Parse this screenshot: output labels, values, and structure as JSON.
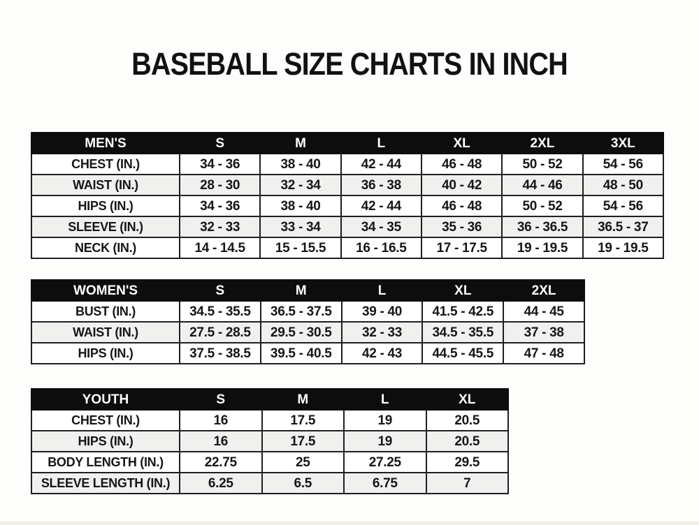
{
  "title": "BASEBALL SIZE CHARTS IN INCH",
  "colors": {
    "header_bg": "#0d0d0d",
    "header_text": "#ffffff",
    "row_alt_bg": "#f0f0ee",
    "row_bg": "#ffffff",
    "border": "#1f1f1f",
    "text": "#161616"
  },
  "chart_data": [
    {
      "type": "table",
      "name": "mens",
      "title": "MEN'S",
      "columns": [
        "S",
        "M",
        "L",
        "XL",
        "2XL",
        "3XL"
      ],
      "row_labels": [
        "CHEST (IN.)",
        "WAIST (IN.)",
        "HIPS (IN.)",
        "SLEEVE (IN.)",
        "NECK (IN.)"
      ],
      "rows": [
        [
          "34 - 36",
          "38 - 40",
          "42 - 44",
          "46 - 48",
          "50 - 52",
          "54 - 56"
        ],
        [
          "28 - 30",
          "32 - 34",
          "36 - 38",
          "40 - 42",
          "44 - 46",
          "48 - 50"
        ],
        [
          "34 - 36",
          "38 - 40",
          "42 - 44",
          "46 - 48",
          "50 - 52",
          "54 - 56"
        ],
        [
          "32 - 33",
          "33 - 34",
          "34 - 35",
          "35 - 36",
          "36 - 36.5",
          "36.5 - 37"
        ],
        [
          "14 - 14.5",
          "15 - 15.5",
          "16 - 16.5",
          "17 - 17.5",
          "19 - 19.5",
          "19 - 19.5"
        ]
      ]
    },
    {
      "type": "table",
      "name": "womens",
      "title": "WOMEN'S",
      "columns": [
        "S",
        "M",
        "L",
        "XL",
        "2XL"
      ],
      "row_labels": [
        "BUST (IN.)",
        "WAIST (IN.)",
        "HIPS (IN.)"
      ],
      "rows": [
        [
          "34.5 - 35.5",
          "36.5 - 37.5",
          "39 - 40",
          "41.5 - 42.5",
          "44 - 45"
        ],
        [
          "27.5 - 28.5",
          "29.5 - 30.5",
          "32 - 33",
          "34.5 - 35.5",
          "37 - 38"
        ],
        [
          "37.5 - 38.5",
          "39.5 - 40.5",
          "42 - 43",
          "44.5 - 45.5",
          "47 - 48"
        ]
      ]
    },
    {
      "type": "table",
      "name": "youth",
      "title": "YOUTH",
      "columns": [
        "S",
        "M",
        "L",
        "XL"
      ],
      "row_labels": [
        "CHEST (IN.)",
        "HIPS (IN.)",
        "BODY LENGTH (IN.)",
        "SLEEVE LENGTH (IN.)"
      ],
      "rows": [
        [
          "16",
          "17.5",
          "19",
          "20.5"
        ],
        [
          "16",
          "17.5",
          "19",
          "20.5"
        ],
        [
          "22.75",
          "25",
          "27.25",
          "29.5"
        ],
        [
          "6.25",
          "6.5",
          "6.75",
          "7"
        ]
      ]
    }
  ]
}
